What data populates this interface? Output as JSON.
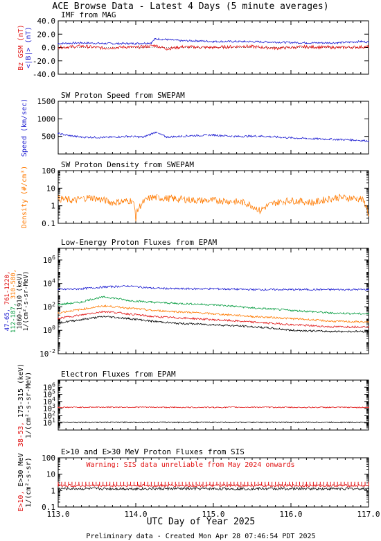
{
  "title": "ACE Browse Data - Latest 4 Days (5 minute averages)",
  "footer": "Preliminary data - Created Mon Apr 28 07:46:54 PDT 2025",
  "xaxis": {
    "label": "UTC Day of Year 2025",
    "range": [
      113.0,
      117.0
    ],
    "ticks": [
      "113.0",
      "114.0",
      "115.0",
      "116.0",
      "117.0"
    ]
  },
  "colors": {
    "blue": "#1a1ad0",
    "red": "#e01010",
    "orange": "#ff7a00",
    "green": "#009a3c",
    "black": "#000000"
  },
  "chart_data": [
    {
      "type": "line",
      "title": "IMF from MAG",
      "ylabel_parts": [
        {
          "text": "<|B|> (nT)",
          "color": "#1a1ad0"
        },
        {
          "text": "Bz GSM (nT)",
          "color": "#e01010"
        }
      ],
      "yscale": "linear",
      "ylim": [
        -40,
        40
      ],
      "yticks": [
        "40.0",
        "20.0",
        "0.0",
        "-20.0",
        "-40.0"
      ],
      "series": [
        {
          "name": "<|B|>",
          "color": "#1a1ad0",
          "x": [
            113.0,
            113.3,
            113.6,
            113.9,
            114.0,
            114.2,
            114.25,
            114.4,
            114.6,
            114.8,
            115.0,
            115.4,
            115.8,
            116.2,
            116.6,
            116.9,
            117.0
          ],
          "values": [
            6,
            7,
            6,
            6,
            6,
            7,
            13,
            12,
            10,
            10,
            9,
            9,
            8,
            7,
            7,
            9,
            8
          ]
        },
        {
          "name": "Bz GSM",
          "color": "#e01010",
          "x": [
            113.0,
            113.3,
            113.6,
            113.9,
            114.0,
            114.25,
            114.4,
            114.6,
            115.0,
            115.4,
            115.8,
            116.2,
            116.6,
            117.0
          ],
          "values": [
            0,
            2,
            -1,
            1,
            0,
            3,
            -2,
            1,
            0,
            2,
            -1,
            1,
            0,
            1
          ]
        }
      ]
    },
    {
      "type": "line",
      "title": "SW Proton Speed from SWEPAM",
      "ylabel_parts": [
        {
          "text": "Speed (km/sec)",
          "color": "#1a1ad0"
        }
      ],
      "yscale": "linear",
      "ylim": [
        0,
        1500
      ],
      "yticks": [
        "500",
        "1000",
        "1500"
      ],
      "series": [
        {
          "name": "Speed",
          "color": "#1a1ad0",
          "x": [
            113.0,
            113.15,
            113.3,
            113.6,
            113.9,
            114.1,
            114.25,
            114.4,
            114.7,
            115.0,
            115.3,
            115.6,
            115.9,
            116.2,
            116.5,
            116.8,
            117.0
          ],
          "values": [
            580,
            520,
            480,
            470,
            500,
            480,
            620,
            480,
            520,
            540,
            500,
            510,
            470,
            440,
            420,
            400,
            370
          ]
        }
      ]
    },
    {
      "type": "line",
      "title": "SW Proton Density from SWEPAM",
      "ylabel_parts": [
        {
          "text": "Density (#/cm³)",
          "color": "#ff7a00"
        }
      ],
      "yscale": "log",
      "ylim": [
        0.1,
        100
      ],
      "yticks": [
        "100",
        "10",
        "1",
        "0.1"
      ],
      "series": [
        {
          "name": "Density",
          "color": "#ff7a00",
          "x": [
            113.0,
            113.2,
            113.4,
            113.7,
            113.95,
            114.0,
            114.2,
            114.5,
            114.8,
            115.1,
            115.4,
            115.6,
            115.8,
            116.0,
            116.3,
            116.6,
            116.9,
            117.0
          ],
          "values": [
            2.5,
            2.0,
            3.0,
            1.5,
            2.0,
            0.2,
            3.0,
            2.5,
            2.0,
            2.0,
            1.5,
            0.5,
            1.5,
            2.0,
            1.5,
            3.0,
            2.5,
            0.3
          ]
        }
      ]
    },
    {
      "type": "line",
      "title": "Low-Energy Proton Fluxes from EPAM",
      "ylabel_parts": [
        {
          "text": "1/(cm²-s-sr-MeV)",
          "color": "#000000"
        },
        {
          "text": "47-65,",
          "color": "#1a1ad0"
        },
        {
          "text": "112-187,",
          "color": "#009a3c"
        },
        {
          "text": "310-580,",
          "color": "#ff7a00"
        },
        {
          "text": "761-1220,",
          "color": "#e01010"
        },
        {
          "text": "1060-1910 (keV)",
          "color": "#000000"
        }
      ],
      "yscale": "log",
      "ylim": [
        0.01,
        10000000
      ],
      "yticks": [
        "10^6",
        "10^4",
        "10^2",
        "10^0",
        "10^-2"
      ],
      "series": [
        {
          "name": "47-65",
          "color": "#1a1ad0",
          "x": [
            113.0,
            113.3,
            113.6,
            113.9,
            114.2,
            114.5,
            115.0,
            115.5,
            116.0,
            116.5,
            117.0
          ],
          "values": [
            3000,
            3500,
            5000,
            6000,
            4000,
            3500,
            3500,
            3000,
            3000,
            3000,
            3000
          ]
        },
        {
          "name": "112-187",
          "color": "#009a3c",
          "x": [
            113.0,
            113.3,
            113.6,
            113.9,
            114.2,
            114.5,
            115.0,
            115.5,
            116.0,
            116.5,
            117.0
          ],
          "values": [
            150,
            250,
            700,
            350,
            250,
            200,
            150,
            80,
            50,
            30,
            25
          ]
        },
        {
          "name": "310-580",
          "color": "#ff7a00",
          "x": [
            113.0,
            113.3,
            113.6,
            113.9,
            114.2,
            114.5,
            115.0,
            115.5,
            116.0,
            116.5,
            117.0
          ],
          "values": [
            30,
            60,
            120,
            80,
            50,
            40,
            25,
            15,
            10,
            6,
            5
          ]
        },
        {
          "name": "761-1220",
          "color": "#e01010",
          "x": [
            113.0,
            113.3,
            113.6,
            113.9,
            114.2,
            114.5,
            115.0,
            115.5,
            116.0,
            116.5,
            117.0
          ],
          "values": [
            10,
            20,
            40,
            25,
            15,
            12,
            8,
            5,
            3,
            2,
            2
          ]
        },
        {
          "name": "1060-1910",
          "color": "#000000",
          "x": [
            113.0,
            113.3,
            113.6,
            113.9,
            114.2,
            114.5,
            115.0,
            115.5,
            116.0,
            116.5,
            117.0
          ],
          "values": [
            4,
            8,
            15,
            10,
            6,
            4,
            3,
            2,
            1,
            0.8,
            0.8
          ]
        }
      ]
    },
    {
      "type": "line",
      "title": "Electron Fluxes from EPAM",
      "ylabel_parts": [
        {
          "text": "1/(cm²-s-sr-MeV)",
          "color": "#000000"
        },
        {
          "text": "38-53,",
          "color": "#e01010"
        },
        {
          "text": "175-315 (keV)",
          "color": "#000000"
        }
      ],
      "yscale": "log",
      "ylim": [
        1,
        10000000
      ],
      "yticks": [
        "10^6",
        "10^5",
        "10^4",
        "10^3",
        "10^2",
        "10^1"
      ],
      "series": [
        {
          "name": "38-53",
          "color": "#e01010",
          "x": [
            113.0,
            113.5,
            114.0,
            114.5,
            115.0,
            115.5,
            116.0,
            116.5,
            117.0
          ],
          "values": [
            1500,
            1600,
            1600,
            1500,
            1500,
            1600,
            1500,
            1500,
            1500
          ]
        },
        {
          "name": "175-315",
          "color": "#000000",
          "x": [
            113.0,
            113.5,
            114.0,
            114.5,
            115.0,
            115.5,
            116.0,
            116.5,
            117.0
          ],
          "values": [
            12,
            12,
            12,
            12,
            12,
            12,
            12,
            12,
            12
          ]
        }
      ]
    },
    {
      "type": "line",
      "title": "E>10 and E>30 MeV Proton Fluxes from SIS",
      "annotation": "Warning: SIS data unreliable from May 2024 onwards",
      "ylabel_parts": [
        {
          "text": "1/(cm²-s-sr)",
          "color": "#000000"
        },
        {
          "text": "E>10,",
          "color": "#e01010"
        },
        {
          "text": "E>30 MeV",
          "color": "#000000"
        }
      ],
      "yscale": "log",
      "ylim": [
        0.1,
        100
      ],
      "yticks": [
        "100",
        "10",
        "1",
        "0.1"
      ],
      "series": [
        {
          "name": "E>10",
          "color": "#e01010",
          "x": [
            113.0,
            114.0,
            115.0,
            116.0,
            117.0
          ],
          "values": [
            2.0,
            2.0,
            2.0,
            2.0,
            2.0
          ]
        },
        {
          "name": "E>30",
          "color": "#000000",
          "x": [
            113.0,
            114.0,
            115.0,
            116.0,
            117.0
          ],
          "values": [
            1.3,
            1.3,
            1.3,
            1.3,
            1.3
          ]
        }
      ]
    }
  ]
}
